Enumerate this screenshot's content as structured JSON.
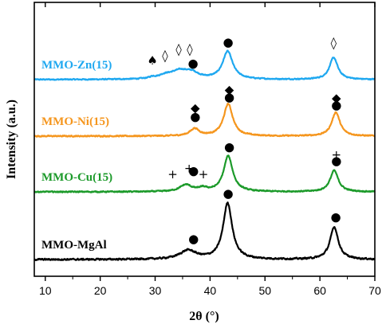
{
  "chart_data": {
    "type": "line",
    "xlabel": "2θ (°)",
    "ylabel": "Intensity (a.u.)",
    "xlim": [
      8,
      70
    ],
    "x_ticks": [
      "10",
      "20",
      "30",
      "40",
      "50",
      "60",
      "70"
    ],
    "grid": false,
    "series": [
      {
        "name": "MMO-Zn(15)",
        "color": "#1fa8f0",
        "baseline": 0.94,
        "peaks": [
          {
            "center": 29.5,
            "amp": 0.03,
            "width": 0.6
          },
          {
            "center": 31.8,
            "amp": 0.06,
            "width": 1.4
          },
          {
            "center": 34.6,
            "amp": 0.18,
            "width": 2.2
          },
          {
            "center": 36.8,
            "amp": 0.09,
            "width": 1.3
          },
          {
            "center": 43.2,
            "amp": 0.58,
            "width": 1.1
          },
          {
            "center": 62.5,
            "amp": 0.46,
            "width": 0.9
          }
        ],
        "markers": [
          {
            "x": 29.5,
            "symbol": "♠",
            "y": 0.32
          },
          {
            "x": 31.8,
            "symbol": "◊",
            "y": 0.42
          },
          {
            "x": 34.3,
            "symbol": "◊",
            "y": 0.55
          },
          {
            "x": 36.3,
            "symbol": "◊",
            "y": 0.55
          },
          {
            "x": 36.9,
            "symbol": "●",
            "y": 0.26
          },
          {
            "x": 43.3,
            "symbol": "●",
            "y": 0.7
          },
          {
            "x": 62.5,
            "symbol": "◊",
            "y": 0.68
          }
        ]
      },
      {
        "name": "MMO-Ni(15)",
        "color": "#f5961e",
        "baseline": 0.95,
        "peaks": [
          {
            "center": 37.2,
            "amp": 0.14,
            "width": 1.0
          },
          {
            "center": 43.3,
            "amp": 0.62,
            "width": 1.0
          },
          {
            "center": 62.9,
            "amp": 0.46,
            "width": 0.9
          }
        ],
        "markers": [
          {
            "x": 37.3,
            "symbol": "◆",
            "y": 0.47
          },
          {
            "x": 37.3,
            "symbol": "●",
            "y": 0.3
          },
          {
            "x": 43.5,
            "symbol": "◆",
            "y": 0.82
          },
          {
            "x": 43.5,
            "symbol": "●",
            "y": 0.68
          },
          {
            "x": 63.0,
            "symbol": "◆",
            "y": 0.66
          },
          {
            "x": 63.0,
            "symbol": "●",
            "y": 0.52
          }
        ]
      },
      {
        "name": "MMO-Cu(15)",
        "color": "#1c9a2a",
        "baseline": 0.79,
        "peaks": [
          {
            "center": 35.6,
            "amp": 0.13,
            "width": 1.3
          },
          {
            "center": 38.7,
            "amp": 0.06,
            "width": 1.0
          },
          {
            "center": 43.3,
            "amp": 0.69,
            "width": 1.0
          },
          {
            "center": 62.6,
            "amp": 0.41,
            "width": 0.9
          }
        ],
        "markers": [
          {
            "x": 33.2,
            "symbol": "+",
            "y": 0.26
          },
          {
            "x": 36.2,
            "symbol": "+",
            "y": 0.38
          },
          {
            "x": 38.8,
            "symbol": "+",
            "y": 0.26
          },
          {
            "x": 37.0,
            "symbol": "●",
            "y": 0.33
          },
          {
            "x": 43.5,
            "symbol": "●",
            "y": 0.79
          },
          {
            "x": 63.0,
            "symbol": "+",
            "y": 0.64
          },
          {
            "x": 63.0,
            "symbol": "●",
            "y": 0.52
          }
        ]
      },
      {
        "name": "MMO-MgAl",
        "color": "#000000",
        "baseline": 0.85,
        "peaks": [
          {
            "center": 36.0,
            "amp": 0.13,
            "width": 1.8
          },
          {
            "center": 43.2,
            "amp": 0.83,
            "width": 1.0
          },
          {
            "center": 62.6,
            "amp": 0.48,
            "width": 0.9
          }
        ],
        "markers": [
          {
            "x": 37.0,
            "symbol": "●",
            "y": 0.25
          },
          {
            "x": 43.3,
            "symbol": "●",
            "y": 0.92
          },
          {
            "x": 62.9,
            "symbol": "●",
            "y": 0.57
          }
        ]
      }
    ]
  }
}
